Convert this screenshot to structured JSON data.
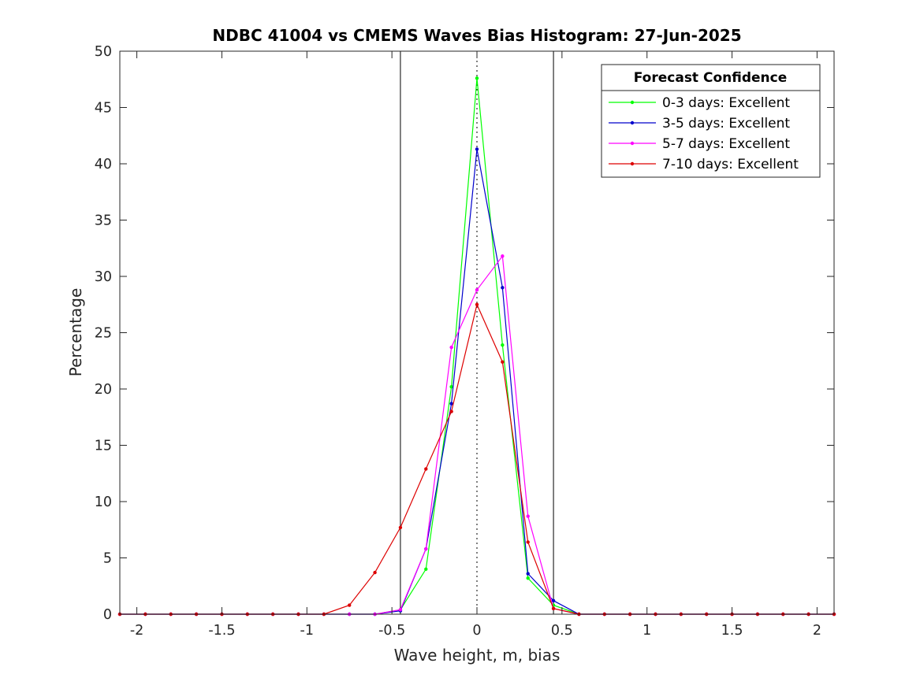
{
  "chart_data": {
    "type": "line",
    "title": "NDBC 41004 vs CMEMS Waves Bias Histogram: 27-Jun-2025",
    "xlabel": "Wave height, m, bias",
    "ylabel": "Percentage",
    "xlim": [
      -2.1,
      2.1
    ],
    "ylim": [
      0,
      50
    ],
    "xticks": [
      -2,
      -1.5,
      -1,
      -0.5,
      0,
      0.5,
      1,
      1.5,
      2
    ],
    "xtick_labels": [
      "-2",
      "-1.5",
      "-1",
      "-0.5",
      "0",
      "0.5",
      "1",
      "1.5",
      "2"
    ],
    "yticks": [
      0,
      5,
      10,
      15,
      20,
      25,
      30,
      35,
      40,
      45,
      50
    ],
    "ytick_labels": [
      "0",
      "5",
      "10",
      "15",
      "20",
      "25",
      "30",
      "35",
      "40",
      "45",
      "50"
    ],
    "grid": false,
    "reference_lines": {
      "solid_x": [
        -0.45,
        0.45
      ],
      "dotted_x": [
        0
      ]
    },
    "legend": {
      "title": "Forecast Confidence",
      "location": "top-right"
    },
    "x": [
      -2.1,
      -1.95,
      -1.8,
      -1.65,
      -1.5,
      -1.35,
      -1.2,
      -1.05,
      -0.9,
      -0.75,
      -0.6,
      -0.45,
      -0.3,
      -0.15,
      0,
      0.15,
      0.3,
      0.45,
      0.6,
      0.75,
      0.9,
      1.05,
      1.2,
      1.35,
      1.5,
      1.65,
      1.8,
      1.95,
      2.1
    ],
    "series": [
      {
        "name": "0-3 days: Excellent",
        "color": "#00ff00",
        "values": [
          0,
          0,
          0,
          0,
          0,
          0,
          0,
          0,
          0,
          0,
          0,
          0.4,
          4.0,
          20.2,
          47.6,
          23.9,
          3.2,
          0.8,
          0,
          0,
          0,
          0,
          0,
          0,
          0,
          0,
          0,
          0,
          0
        ]
      },
      {
        "name": "3-5 days: Excellent",
        "color": "#0000cc",
        "values": [
          0,
          0,
          0,
          0,
          0,
          0,
          0,
          0,
          0,
          0,
          0,
          0.3,
          5.8,
          18.7,
          41.3,
          29.0,
          3.6,
          1.2,
          0,
          0,
          0,
          0,
          0,
          0,
          0,
          0,
          0,
          0,
          0
        ]
      },
      {
        "name": "5-7 days: Excellent",
        "color": "#ff00ff",
        "values": [
          0,
          0,
          0,
          0,
          0,
          0,
          0,
          0,
          0,
          0,
          0,
          0.4,
          5.8,
          23.7,
          28.8,
          31.8,
          8.7,
          0.5,
          0,
          0,
          0,
          0,
          0,
          0,
          0,
          0,
          0,
          0,
          0
        ]
      },
      {
        "name": "7-10 days: Excellent",
        "color": "#dd0000",
        "values": [
          0,
          0,
          0,
          0,
          0,
          0,
          0,
          0,
          0,
          0.8,
          3.7,
          7.7,
          12.9,
          18.0,
          27.5,
          22.4,
          6.4,
          0.5,
          0,
          0,
          0,
          0,
          0,
          0,
          0,
          0,
          0,
          0,
          0
        ]
      }
    ]
  }
}
